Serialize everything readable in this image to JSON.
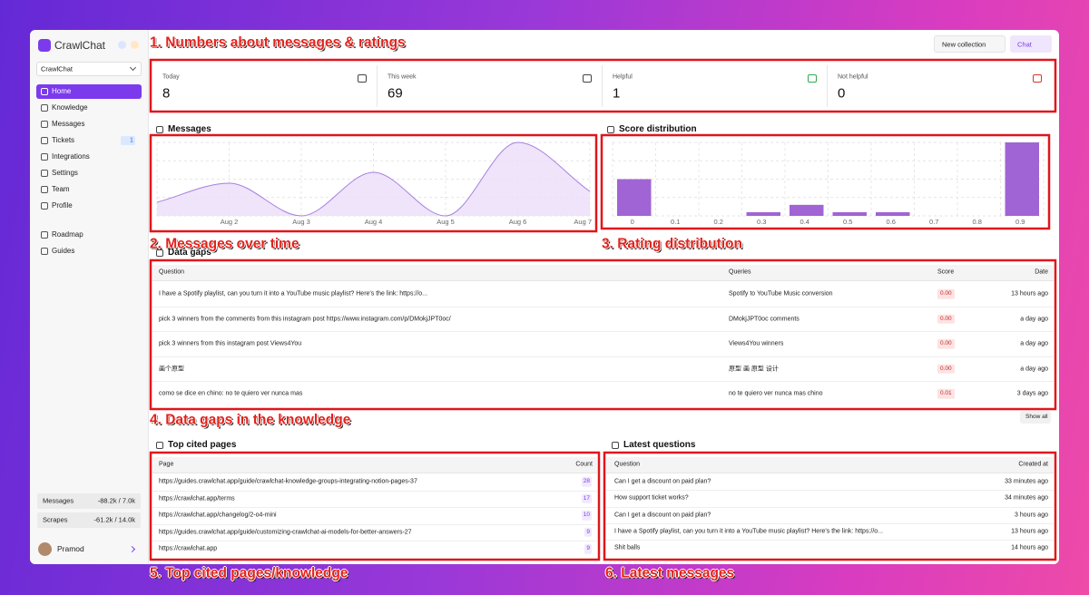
{
  "sidebar": {
    "brand": "CrawlChat",
    "collection": "CrawlChat",
    "nav": [
      "Home",
      "Knowledge",
      "Messages",
      "Tickets",
      "Integrations",
      "Settings",
      "Team",
      "Profile"
    ],
    "tickets_badge": 1,
    "nav2": [
      "Roadmap",
      "Guides"
    ],
    "usage": [
      {
        "label": "Messages",
        "value": "-88.2k / 7.0k"
      },
      {
        "label": "Scrapes",
        "value": "-61.2k / 14.0k"
      }
    ],
    "user": "Pramod"
  },
  "header": {
    "buttons": [
      "New collection",
      "Chat"
    ]
  },
  "annotations": [
    "1. Numbers about messages & ratings",
    "2. Messages over time",
    "3. Rating distribution",
    "4. Data gaps in the knowledge",
    "5. Top cited pages/knowledge",
    "6. Latest messages"
  ],
  "stats": [
    {
      "label": "Today",
      "value": 8
    },
    {
      "label": "This week",
      "value": 69
    },
    {
      "label": "Helpful",
      "value": 1
    },
    {
      "label": "Not helpful",
      "value": 0
    }
  ],
  "messages_chart": {
    "type": "area",
    "title": "Messages",
    "categories": [
      null,
      "Aug 2",
      "Aug 3",
      "Aug 4",
      "Aug 5",
      "Aug 6",
      "Aug 7"
    ],
    "values": [
      5,
      12,
      0,
      16,
      0,
      27,
      9
    ],
    "ylim": [
      0,
      27
    ],
    "color": "#a67fe0",
    "fill": "#ecdff9",
    "grid": true
  },
  "score_chart": {
    "type": "bar",
    "title": "Score distribution",
    "categories": [
      "0",
      "0.1",
      "0.2",
      "0.3",
      "0.4",
      "0.5",
      "0.6",
      "0.7",
      "0.8",
      "0.9"
    ],
    "values": [
      10,
      0,
      0,
      1,
      3,
      1,
      1,
      0,
      0,
      20
    ],
    "ylim": [
      0,
      20
    ],
    "color": "#a064d4",
    "grid": true
  },
  "data_gaps": {
    "title": "Data gaps",
    "columns": [
      "Question",
      "Queries",
      "Score",
      "Date"
    ],
    "rows": [
      [
        "I have a Spotify playlist, can you turn it into a YouTube music playlist? Here's the link: https://o...",
        "Spotify to YouTube Music conversion",
        "0.00",
        "13 hours ago"
      ],
      [
        "pick 3 winners from the comments from this instagram post https://www.instagram.com/p/DMokjJPT0oc/",
        "DMokjJPT0oc comments",
        "0.00",
        "a day ago"
      ],
      [
        "pick 3 winners from this instagram post Views4You",
        "Views4You winners",
        "0.00",
        "a day ago"
      ],
      [
        "画个原型",
        "原型 画 原型 设计",
        "0.00",
        "a day ago"
      ],
      [
        "como se dice en chino: no te quiero ver nunca mas",
        "no te quiero ver nunca mas chino",
        "0.01",
        "3 days ago"
      ]
    ],
    "button": "Show all"
  },
  "top_cited": {
    "title": "Top cited pages",
    "columns": [
      "Page",
      "Count"
    ],
    "rows": [
      [
        "https://guides.crawlchat.app/guide/crawlchat-knowledge-groups-integrating-notion-pages-37",
        28
      ],
      [
        "https://crawlchat.app/terms",
        17
      ],
      [
        "https://crawlchat.app/changelog/2-o4-mini",
        10
      ],
      [
        "https://guides.crawlchat.app/guide/customizing-crawlchat-ai-models-for-better-answers-27",
        9
      ],
      [
        "https://crawlchat.app",
        9
      ]
    ]
  },
  "latest_questions": {
    "title": "Latest questions",
    "columns": [
      "Question",
      "Created at"
    ],
    "rows": [
      [
        "Can I get a discount on paid plan?",
        "33 minutes ago"
      ],
      [
        "How support ticket works?",
        "34 minutes ago"
      ],
      [
        "Can I get a discount on paid plan?",
        "3 hours ago"
      ],
      [
        "I have a Spotify playlist, can you turn it into a YouTube music playlist? Here's the link: https://o...",
        "13 hours ago"
      ],
      [
        "Shit balls",
        "14 hours ago"
      ]
    ]
  }
}
